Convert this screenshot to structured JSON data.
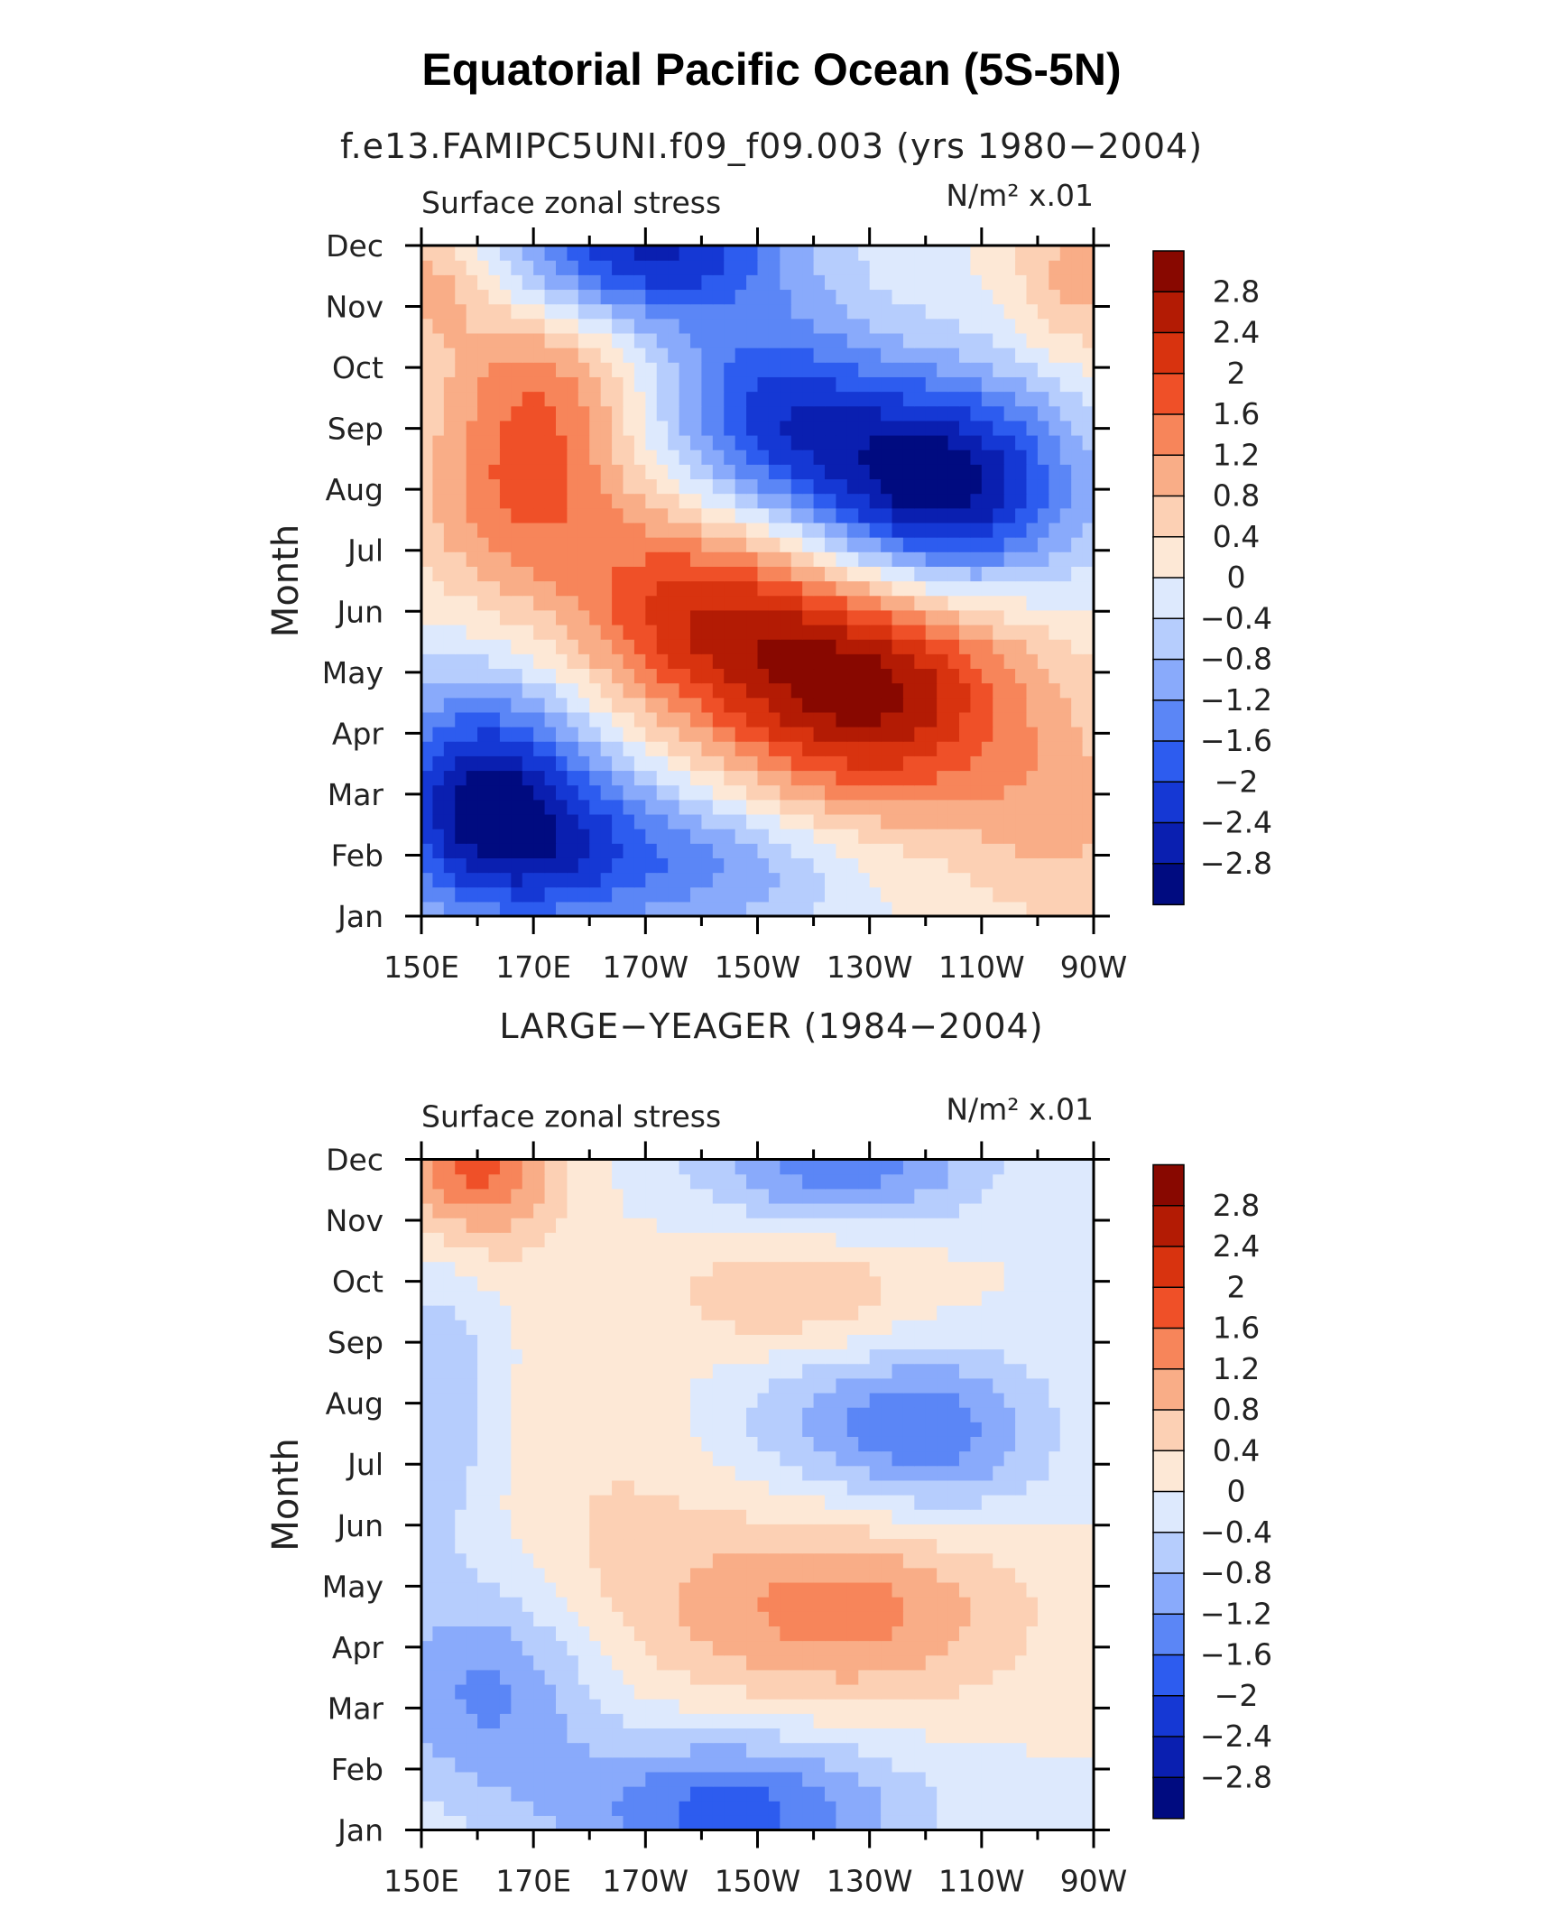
{
  "title": "Equatorial Pacific Ocean (5S-5N)",
  "colors": {
    "levels": [
      -2.8,
      -2.4,
      -2.0,
      -1.6,
      -1.2,
      -0.8,
      -0.4,
      0,
      0.4,
      0.8,
      1.2,
      1.6,
      2.0,
      2.4,
      2.8
    ],
    "palette": [
      "#000b80",
      "#0a1fb0",
      "#1538d4",
      "#2d5cef",
      "#5b86f6",
      "#89aafb",
      "#b6cdfd",
      "#dde9fd",
      "#fde8d6",
      "#fcd0b4",
      "#f9ad87",
      "#f7855a",
      "#ef5028",
      "#d8330f",
      "#b31b04",
      "#880800"
    ]
  },
  "chart_data": [
    {
      "type": "heatmap",
      "subtitle": "f.e13.FAMIPC5UNI.f09_f09.003 (yrs 1980−2004)",
      "variable_label": "Surface zonal stress",
      "units_label": "N/m² x.01",
      "ylabel": "Month",
      "x_labels": [
        "150E",
        "170E",
        "170W",
        "150W",
        "130W",
        "110W",
        "90W"
      ],
      "y_labels": [
        "Jan",
        "Feb",
        "Mar",
        "Apr",
        "May",
        "Jun",
        "Jul",
        "Aug",
        "Sep",
        "Oct",
        "Nov",
        "Dec"
      ],
      "xlim": [
        150,
        270
      ],
      "colorbar_labels": [
        "2.8",
        "2.4",
        "2",
        "1.6",
        "1.2",
        "0.8",
        "0.4",
        "0",
        "−0.4",
        "−0.8",
        "−1.2",
        "−1.6",
        "−2",
        "−2.4",
        "−2.8"
      ],
      "data": [
        {
          "lon": 161,
          "month": 2.0,
          "value": -2.6,
          "sigma": 14,
          "sigma_month": 1.3
        },
        {
          "lon": 180,
          "month": 1.0,
          "value": -1.5,
          "sigma": 18,
          "sigma_month": 1.0
        },
        {
          "lon": 210,
          "month": 0.8,
          "value": -0.8,
          "sigma": 15,
          "sigma_month": 0.8
        },
        {
          "lon": 230,
          "month": 3.8,
          "value": 3.0,
          "sigma": 20,
          "sigma_month": 1.5
        },
        {
          "lon": 198,
          "month": 5.0,
          "value": 1.8,
          "sigma": 16,
          "sigma_month": 1.2
        },
        {
          "lon": 168,
          "month": 6.8,
          "value": 1.4,
          "sigma": 14,
          "sigma_month": 1.2
        },
        {
          "lon": 171,
          "month": 8.8,
          "value": 1.2,
          "sigma": 12,
          "sigma_month": 1.1
        },
        {
          "lon": 242,
          "month": 7.0,
          "value": -3.3,
          "sigma": 17,
          "sigma_month": 1.3
        },
        {
          "lon": 212,
          "month": 8.3,
          "value": -1.9,
          "sigma": 14,
          "sigma_month": 1.2
        },
        {
          "lon": 190,
          "month": 11.0,
          "value": -2.5,
          "sigma": 18,
          "sigma_month": 0.9
        },
        {
          "lon": 152,
          "month": 10.5,
          "value": 1.0,
          "sigma": 8,
          "sigma_month": 0.8
        },
        {
          "lon": 268,
          "month": 10.5,
          "value": 1.0,
          "sigma": 9,
          "sigma_month": 1.0
        },
        {
          "lon": 265,
          "month": 1.5,
          "value": 0.8,
          "sigma": 12,
          "sigma_month": 1.2
        }
      ]
    },
    {
      "type": "heatmap",
      "subtitle": "LARGE−YEAGER (1984−2004)",
      "variable_label": "Surface zonal stress",
      "units_label": "N/m² x.01",
      "ylabel": "Month",
      "x_labels": [
        "150E",
        "170E",
        "170W",
        "150W",
        "130W",
        "110W",
        "90W"
      ],
      "y_labels": [
        "Jan",
        "Feb",
        "Mar",
        "Apr",
        "May",
        "Jun",
        "Jul",
        "Aug",
        "Sep",
        "Oct",
        "Nov",
        "Dec"
      ],
      "xlim": [
        150,
        270
      ],
      "colorbar_labels": [
        "2.8",
        "2.4",
        "2",
        "1.6",
        "1.2",
        "0.8",
        "0.4",
        "0",
        "−0.4",
        "−0.8",
        "−1.2",
        "−1.6",
        "−2",
        "−2.4",
        "−2.8"
      ],
      "data": [
        {
          "lon": 160,
          "month": 11.0,
          "value": 1.8,
          "sigma": 10,
          "sigma_month": 1.0
        },
        {
          "lon": 162,
          "month": 2.3,
          "value": -1.3,
          "sigma": 14,
          "sigma_month": 1.2
        },
        {
          "lon": 205,
          "month": 0.3,
          "value": -1.8,
          "sigma": 22,
          "sigma_month": 0.9
        },
        {
          "lon": 225,
          "month": 3.6,
          "value": 1.4,
          "sigma": 22,
          "sigma_month": 1.1
        },
        {
          "lon": 243,
          "month": 6.5,
          "value": -1.2,
          "sigma": 14,
          "sigma_month": 1.0
        },
        {
          "lon": 222,
          "month": 6.8,
          "value": -0.7,
          "sigma": 16,
          "sigma_month": 0.9
        },
        {
          "lon": 218,
          "month": 8.8,
          "value": 0.8,
          "sigma": 16,
          "sigma_month": 0.8
        },
        {
          "lon": 225,
          "month": 11.0,
          "value": -1.5,
          "sigma": 18,
          "sigma_month": 0.8
        },
        {
          "lon": 153,
          "month": 7.0,
          "value": -0.8,
          "sigma": 7,
          "sigma_month": 1.8
        },
        {
          "lon": 185,
          "month": 5.0,
          "value": 0.4,
          "sigma": 15,
          "sigma_month": 2.2
        }
      ]
    }
  ]
}
